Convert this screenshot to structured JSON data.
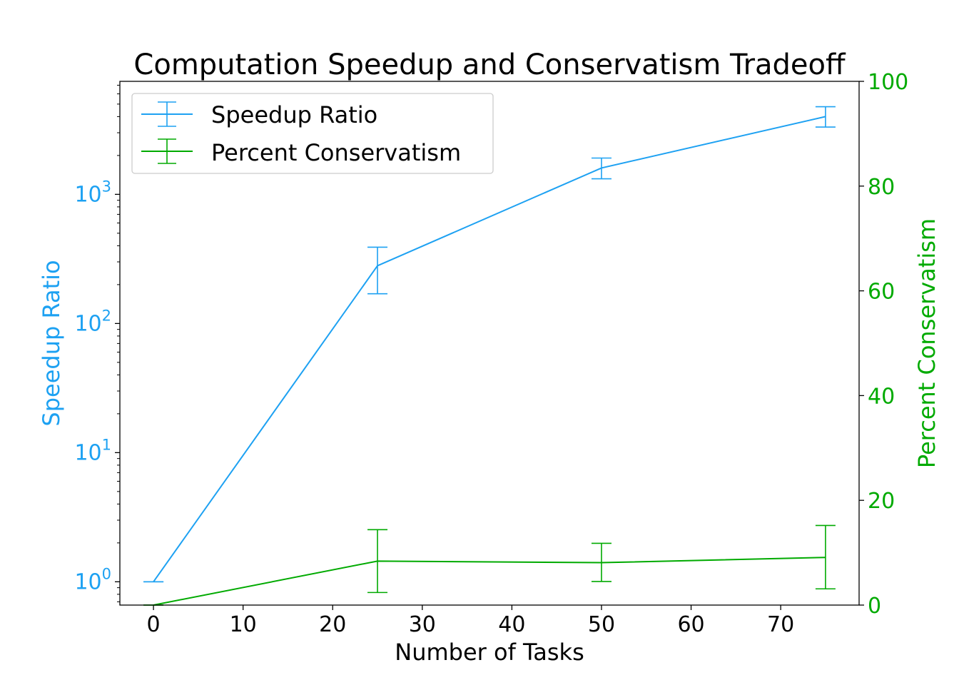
{
  "chart_data": {
    "type": "line",
    "title": "Computation Speedup and Conservatism Tradeoff",
    "xlabel": "Number of Tasks",
    "x_ticks": [
      "0",
      "10",
      "20",
      "30",
      "40",
      "50",
      "60",
      "70"
    ],
    "x_tick_values": [
      0,
      10,
      20,
      30,
      40,
      50,
      60,
      70
    ],
    "xlim": [
      -3.75,
      78.75
    ],
    "left_axis": {
      "label": "Speedup Ratio",
      "scale": "log",
      "color": "#1DA1F2",
      "ylim": [
        0.66,
        7500
      ],
      "ticks": [
        {
          "base": "10",
          "exp": "0",
          "value": 1
        },
        {
          "base": "10",
          "exp": "1",
          "value": 10
        },
        {
          "base": "10",
          "exp": "2",
          "value": 100
        },
        {
          "base": "10",
          "exp": "3",
          "value": 1000
        }
      ]
    },
    "right_axis": {
      "label": "Percent Conservatism",
      "scale": "linear",
      "color": "#00AA00",
      "ylim": [
        0,
        100
      ],
      "ticks": [
        "0",
        "20",
        "40",
        "60",
        "80",
        "100"
      ],
      "tick_values": [
        0,
        20,
        40,
        60,
        80,
        100
      ]
    },
    "legend_position": "upper-left",
    "grid": false,
    "series": [
      {
        "name": "Speedup Ratio",
        "axis": "left",
        "color": "#1DA1F2",
        "points": [
          {
            "x": 0,
            "y": 1,
            "lo": 1,
            "hi": 1
          },
          {
            "x": 25,
            "y": 280,
            "lo": 170,
            "hi": 390
          },
          {
            "x": 50,
            "y": 1600,
            "lo": 1320,
            "hi": 1910
          },
          {
            "x": 75,
            "y": 4000,
            "lo": 3320,
            "hi": 4770
          }
        ]
      },
      {
        "name": "Percent Conservatism",
        "axis": "right",
        "color": "#00AA00",
        "points": [
          {
            "x": 0,
            "y": 0,
            "lo": 0,
            "hi": 0
          },
          {
            "x": 25,
            "y": 8.4,
            "lo": 2.4,
            "hi": 14.4
          },
          {
            "x": 50,
            "y": 8.1,
            "lo": 4.5,
            "hi": 11.8
          },
          {
            "x": 75,
            "y": 9.1,
            "lo": 3.1,
            "hi": 15.2
          }
        ]
      }
    ]
  }
}
